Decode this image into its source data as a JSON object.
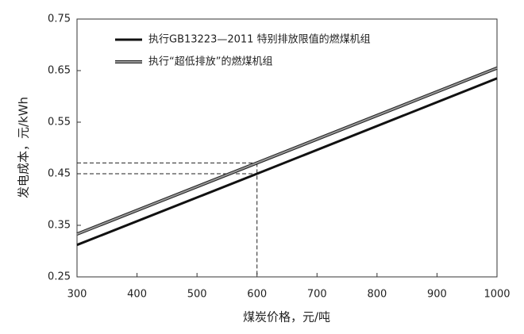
{
  "chart_data": {
    "type": "line",
    "xlabel": "煤炭价格，元/吨",
    "ylabel": "发电成本，元/kWh",
    "x": [
      300,
      600,
      1000
    ],
    "series": [
      {
        "name": "执行GB13223—2011 特别排放限值的燃煤机组",
        "color": "#111111",
        "values": [
          0.312,
          0.45,
          0.635
        ]
      },
      {
        "name": "执行“超低排放”的燃煤机组",
        "color": "#999999",
        "values": [
          0.333,
          0.471,
          0.655
        ]
      }
    ],
    "xlim": [
      300,
      1000
    ],
    "xticks": [
      300,
      400,
      500,
      600,
      700,
      800,
      900,
      1000
    ],
    "ylim": [
      0.25,
      0.75
    ],
    "yticks": [
      0.25,
      0.35,
      0.45,
      0.55,
      0.65,
      0.75
    ],
    "grid": false,
    "legend": "upper left"
  }
}
